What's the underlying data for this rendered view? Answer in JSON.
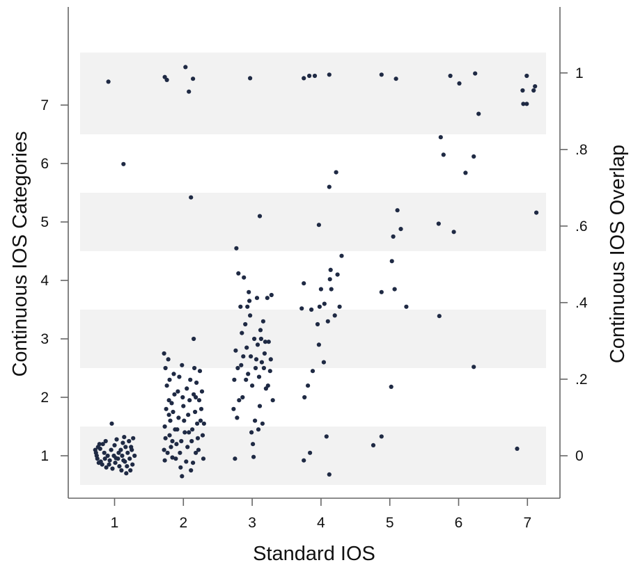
{
  "chart_data": {
    "type": "scatter",
    "xlabel": "Standard IOS",
    "ylabel": "Continuous IOS Categories",
    "y2label": "Continuous IOS Overlap",
    "xlim": [
      0.3,
      7.4
    ],
    "ylim": [
      0.3,
      7.95
    ],
    "x_ticks": [
      1,
      2,
      3,
      4,
      5,
      6,
      7
    ],
    "y_ticks": [
      1,
      2,
      3,
      4,
      5,
      6,
      7
    ],
    "y2_ticks": [
      {
        "value": 0,
        "label": "0"
      },
      {
        "value": 0.2,
        "label": ".2"
      },
      {
        "value": 0.4,
        "label": ".4"
      },
      {
        "value": 0.6,
        "label": ".6"
      },
      {
        "value": 0.8,
        "label": ".8"
      },
      {
        "value": 1,
        "label": "1"
      }
    ],
    "y2_mapping": {
      "y_at_0": 1.0,
      "y_at_1": 7.55
    },
    "bands": [
      [
        0.5,
        1.5
      ],
      [
        2.5,
        3.5
      ],
      [
        4.5,
        5.5
      ],
      [
        6.5,
        7.9
      ]
    ],
    "grid": false,
    "legend": "none",
    "colors": {
      "point": "#1f2a44",
      "band": "#f2f2f2",
      "axis": "#666666"
    },
    "points": [
      [
        0.91,
        7.4
      ],
      [
        1.13,
        5.99
      ],
      [
        0.96,
        1.55
      ],
      [
        0.72,
        1.1
      ],
      [
        0.73,
        1.05
      ],
      [
        0.74,
        1.0
      ],
      [
        0.75,
        0.95
      ],
      [
        0.76,
        1.15
      ],
      [
        0.78,
        1.2
      ],
      [
        0.8,
        0.9
      ],
      [
        0.82,
        0.85
      ],
      [
        0.85,
        1.05
      ],
      [
        0.87,
        1.25
      ],
      [
        0.88,
        0.8
      ],
      [
        0.9,
        1.0
      ],
      [
        0.93,
        0.92
      ],
      [
        0.95,
        1.1
      ],
      [
        0.97,
        0.78
      ],
      [
        0.99,
        1.0
      ],
      [
        1.01,
        0.88
      ],
      [
        1.03,
        1.28
      ],
      [
        1.05,
        0.95
      ],
      [
        1.07,
        0.82
      ],
      [
        1.09,
        1.1
      ],
      [
        1.1,
        0.75
      ],
      [
        1.12,
        1.22
      ],
      [
        1.14,
        1.32
      ],
      [
        1.15,
        0.9
      ],
      [
        1.17,
        0.7
      ],
      [
        1.19,
        1.05
      ],
      [
        1.21,
        1.25
      ],
      [
        1.22,
        0.95
      ],
      [
        1.24,
        1.15
      ],
      [
        1.26,
        0.85
      ],
      [
        1.27,
        1.3
      ],
      [
        1.29,
        1.0
      ],
      [
        0.79,
        1.12
      ],
      [
        0.86,
        0.95
      ],
      [
        1.0,
        1.18
      ],
      [
        1.11,
        1.0
      ],
      [
        1.18,
        0.82
      ],
      [
        1.25,
        1.1
      ],
      [
        0.83,
        1.2
      ],
      [
        0.92,
        0.85
      ],
      [
        1.06,
        1.05
      ],
      [
        1.16,
        1.15
      ],
      [
        1.23,
        0.75
      ],
      [
        0.77,
        0.88
      ],
      [
        1.02,
        0.96
      ],
      [
        1.13,
        0.92
      ],
      [
        1.73,
        7.48
      ],
      [
        1.76,
        7.43
      ],
      [
        2.03,
        7.65
      ],
      [
        2.08,
        7.23
      ],
      [
        2.14,
        7.45
      ],
      [
        2.11,
        5.42
      ],
      [
        2.15,
        3.0
      ],
      [
        1.72,
        2.75
      ],
      [
        1.74,
        2.5
      ],
      [
        1.76,
        2.2
      ],
      [
        1.75,
        1.8
      ],
      [
        1.73,
        1.5
      ],
      [
        1.74,
        1.3
      ],
      [
        1.72,
        1.1
      ],
      [
        1.73,
        0.92
      ],
      [
        1.78,
        2.65
      ],
      [
        1.8,
        2.3
      ],
      [
        1.79,
        1.95
      ],
      [
        1.81,
        1.6
      ],
      [
        1.8,
        1.35
      ],
      [
        1.82,
        1.15
      ],
      [
        1.84,
        0.97
      ],
      [
        1.86,
        2.4
      ],
      [
        1.85,
        1.75
      ],
      [
        1.88,
        1.45
      ],
      [
        1.9,
        1.2
      ],
      [
        1.92,
        2.1
      ],
      [
        1.93,
        1.65
      ],
      [
        1.95,
        1.05
      ],
      [
        1.96,
        0.8
      ],
      [
        1.98,
        0.65
      ],
      [
        1.98,
        2.55
      ],
      [
        2.0,
        1.85
      ],
      [
        2.02,
        1.4
      ],
      [
        2.05,
        2.15
      ],
      [
        2.07,
        1.7
      ],
      [
        2.1,
        2.3
      ],
      [
        2.12,
        1.25
      ],
      [
        2.14,
        0.88
      ],
      [
        2.16,
        2.5
      ],
      [
        2.18,
        2.0
      ],
      [
        2.2,
        1.55
      ],
      [
        2.22,
        1.1
      ],
      [
        2.24,
        2.45
      ],
      [
        2.26,
        1.8
      ],
      [
        2.28,
        1.35
      ],
      [
        2.29,
        0.95
      ],
      [
        1.77,
        1.05
      ],
      [
        1.83,
        1.9
      ],
      [
        1.87,
        2.05
      ],
      [
        1.91,
        1.45
      ],
      [
        1.94,
        2.35
      ],
      [
        1.97,
        1.25
      ],
      [
        2.01,
        1.6
      ],
      [
        2.04,
        0.9
      ],
      [
        2.06,
        1.15
      ],
      [
        2.09,
        1.95
      ],
      [
        2.11,
        0.75
      ],
      [
        2.13,
        1.45
      ],
      [
        2.15,
        2.05
      ],
      [
        2.17,
        1.75
      ],
      [
        2.19,
        2.25
      ],
      [
        2.21,
        1.3
      ],
      [
        2.23,
        1.95
      ],
      [
        2.25,
        1.6
      ],
      [
        2.27,
        2.1
      ],
      [
        1.79,
        1.7
      ],
      [
        1.84,
        1.25
      ],
      [
        1.89,
        0.95
      ],
      [
        1.99,
        2.0
      ],
      [
        2.08,
        1.4
      ],
      [
        2.18,
        1.05
      ],
      [
        2.3,
        1.55
      ],
      [
        2.97,
        7.46
      ],
      [
        3.11,
        5.1
      ],
      [
        2.77,
        4.55
      ],
      [
        2.8,
        4.12
      ],
      [
        2.76,
        2.8
      ],
      [
        2.74,
        2.3
      ],
      [
        2.73,
        1.8
      ],
      [
        2.78,
        1.65
      ],
      [
        2.75,
        0.95
      ],
      [
        2.83,
        3.55
      ],
      [
        2.85,
        3.1
      ],
      [
        2.84,
        2.55
      ],
      [
        2.86,
        2.0
      ],
      [
        2.88,
        4.05
      ],
      [
        2.9,
        3.25
      ],
      [
        2.92,
        2.85
      ],
      [
        2.94,
        2.4
      ],
      [
        2.95,
        3.8
      ],
      [
        2.97,
        3.4
      ],
      [
        2.98,
        2.7
      ],
      [
        3.0,
        2.2
      ],
      [
        3.01,
        1.2
      ],
      [
        3.02,
        0.98
      ],
      [
        3.03,
        3.0
      ],
      [
        3.05,
        2.5
      ],
      [
        3.04,
        1.6
      ],
      [
        3.07,
        3.7
      ],
      [
        3.08,
        2.9
      ],
      [
        3.1,
        2.35
      ],
      [
        3.12,
        3.15
      ],
      [
        3.14,
        2.6
      ],
      [
        3.16,
        3.3
      ],
      [
        3.18,
        2.75
      ],
      [
        3.2,
        2.15
      ],
      [
        3.15,
        1.55
      ],
      [
        3.22,
        3.7
      ],
      [
        3.24,
        2.95
      ],
      [
        3.26,
        2.45
      ],
      [
        3.28,
        3.75
      ],
      [
        3.3,
        1.95
      ],
      [
        3.27,
        2.65
      ],
      [
        2.79,
        2.5
      ],
      [
        2.87,
        2.7
      ],
      [
        2.91,
        2.3
      ],
      [
        2.96,
        3.65
      ],
      [
        3.06,
        2.65
      ],
      [
        3.11,
        1.85
      ],
      [
        3.19,
        2.95
      ],
      [
        3.23,
        2.2
      ],
      [
        2.81,
        1.95
      ],
      [
        2.99,
        1.4
      ],
      [
        3.09,
        1.45
      ],
      [
        3.17,
        2.5
      ],
      [
        2.93,
        3.55
      ],
      [
        3.13,
        3.0
      ],
      [
        3.75,
        7.46
      ],
      [
        3.83,
        7.5
      ],
      [
        3.91,
        7.5
      ],
      [
        4.12,
        7.52
      ],
      [
        4.12,
        5.6
      ],
      [
        4.22,
        5.85
      ],
      [
        3.97,
        4.95
      ],
      [
        3.72,
        3.52
      ],
      [
        3.75,
        3.95
      ],
      [
        3.76,
        2.0
      ],
      [
        3.81,
        2.2
      ],
      [
        3.75,
        0.92
      ],
      [
        3.84,
        1.05
      ],
      [
        3.86,
        3.5
      ],
      [
        3.88,
        2.45
      ],
      [
        3.95,
        3.25
      ],
      [
        3.97,
        2.9
      ],
      [
        3.98,
        3.55
      ],
      [
        4.0,
        3.85
      ],
      [
        4.04,
        2.6
      ],
      [
        4.08,
        1.33
      ],
      [
        4.1,
        3.3
      ],
      [
        4.12,
        0.68
      ],
      [
        4.13,
        4.02
      ],
      [
        4.14,
        4.18
      ],
      [
        4.15,
        3.85
      ],
      [
        4.2,
        3.4
      ],
      [
        4.24,
        4.1
      ],
      [
        4.27,
        3.55
      ],
      [
        4.3,
        4.42
      ],
      [
        4.05,
        3.6
      ],
      [
        4.88,
        7.52
      ],
      [
        5.09,
        7.45
      ],
      [
        5.05,
        4.75
      ],
      [
        5.11,
        5.2
      ],
      [
        5.16,
        4.88
      ],
      [
        5.03,
        4.33
      ],
      [
        4.88,
        3.8
      ],
      [
        5.07,
        3.85
      ],
      [
        5.24,
        3.55
      ],
      [
        5.02,
        2.18
      ],
      [
        4.88,
        1.33
      ],
      [
        4.76,
        1.18
      ],
      [
        5.88,
        7.5
      ],
      [
        6.01,
        7.37
      ],
      [
        6.24,
        7.54
      ],
      [
        6.29,
        6.85
      ],
      [
        5.74,
        6.45
      ],
      [
        5.78,
        6.15
      ],
      [
        6.22,
        6.12
      ],
      [
        6.1,
        5.84
      ],
      [
        5.71,
        4.97
      ],
      [
        5.93,
        4.83
      ],
      [
        5.72,
        3.39
      ],
      [
        6.22,
        2.52
      ],
      [
        6.99,
        7.5
      ],
      [
        6.93,
        7.25
      ],
      [
        7.11,
        7.32
      ],
      [
        6.94,
        7.02
      ],
      [
        6.99,
        7.02
      ],
      [
        7.09,
        7.25
      ],
      [
        7.13,
        5.16
      ],
      [
        6.85,
        1.12
      ]
    ]
  }
}
